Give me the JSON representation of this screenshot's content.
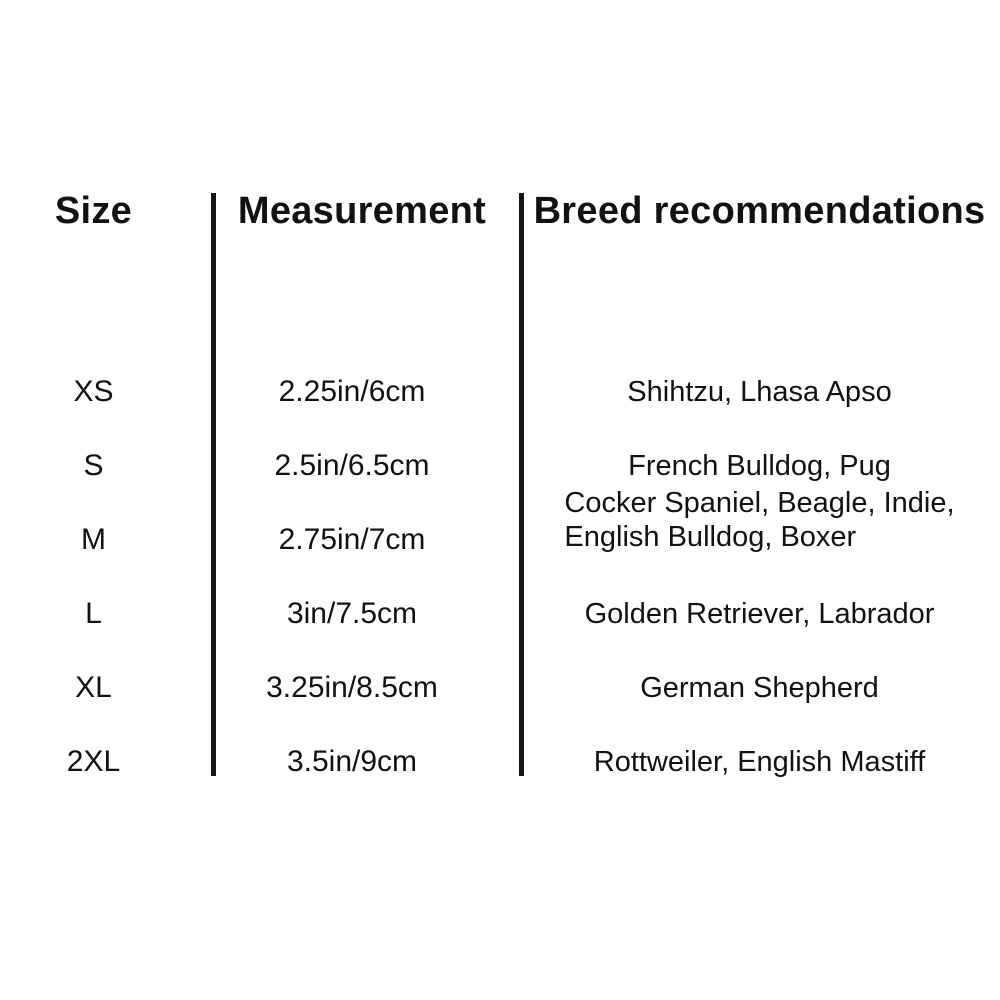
{
  "chart_data": {
    "type": "table",
    "columns": [
      "Size",
      "Measurement",
      "Breed recommendations"
    ],
    "rows": [
      {
        "size": "XS",
        "measurement": "2.25in/6cm",
        "breeds": "Shihtzu, Lhasa Apso"
      },
      {
        "size": "S",
        "measurement": "2.5in/6.5cm",
        "breeds": "French Bulldog, Pug"
      },
      {
        "size": "M",
        "measurement": "2.75in/7cm",
        "breeds": "Cocker Spaniel, Beagle, Indie,\nEnglish Bulldog, Boxer"
      },
      {
        "size": "L",
        "measurement": "3in/7.5cm",
        "breeds": "Golden Retriever, Labrador"
      },
      {
        "size": "XL",
        "measurement": "3.25in/8.5cm",
        "breeds": "German Shepherd"
      },
      {
        "size": "2XL",
        "measurement": "3.5in/9cm",
        "breeds": "Rottweiler, English Mastiff"
      }
    ],
    "layout": {
      "grid": "off",
      "column_dividers": 2
    },
    "colors": {
      "text": "#121212",
      "divider": "#151515",
      "background": "#ffffff"
    }
  }
}
